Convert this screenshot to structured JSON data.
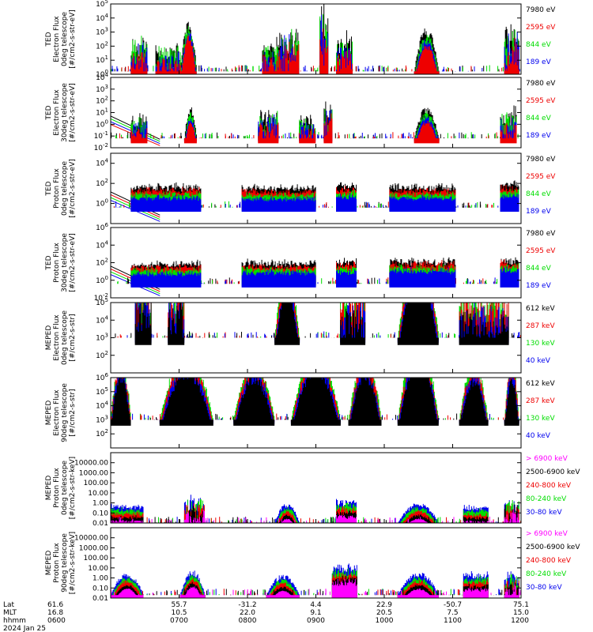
{
  "figure": {
    "xaxis": {
      "row_labels": [
        "Lat",
        "MLT",
        "hhmm"
      ],
      "date": "2024 Jan 25",
      "ticks": [
        {
          "lat": "61.6",
          "mlt": "16.8",
          "hhmm": "0600"
        },
        {
          "lat": "55.7",
          "mlt": "10.5",
          "hhmm": "0700"
        },
        {
          "lat": "-31.2",
          "mlt": "22.0",
          "hhmm": "0800"
        },
        {
          "lat": "4.4",
          "mlt": "9.1",
          "hhmm": "0900"
        },
        {
          "lat": "22.9",
          "mlt": "20.5",
          "hhmm": "1000"
        },
        {
          "lat": "-50.7",
          "mlt": "7.5",
          "hhmm": "1100"
        },
        {
          "lat": "75.1",
          "mlt": "15.0",
          "hhmm": "1200"
        }
      ]
    },
    "colors": {
      "black": "#000000",
      "red": "#ee0000",
      "green": "#00dd00",
      "blue": "#0000ee",
      "magenta": "#ff00ff"
    }
  },
  "chart_data": [
    {
      "type": "line",
      "ylabel_lines": [
        "TED",
        "Electron Flux",
        "0deg telescope",
        "[#/cm2-s-str-eV]"
      ],
      "yscale": "log",
      "ylim": [
        1,
        100000
      ],
      "yticks": [
        {
          "exp": "0"
        },
        {
          "exp": "1"
        },
        {
          "exp": "2"
        },
        {
          "exp": "3"
        },
        {
          "exp": "4"
        },
        {
          "exp": "5"
        }
      ],
      "legend": [
        {
          "label": "7980 eV",
          "color": "#000000"
        },
        {
          "label": "2595 eV",
          "color": "#ee0000"
        },
        {
          "label": "844 eV",
          "color": "#00dd00"
        },
        {
          "label": "189 eV",
          "color": "#0000ee"
        }
      ],
      "series_colors": [
        "#000000",
        "#00dd00",
        "#0000ee",
        "#ee0000"
      ],
      "base": 0.2,
      "seed": 11,
      "features": [
        [
          0.05,
          0.09,
          2.6,
          1
        ],
        [
          0.11,
          0.17,
          2.0,
          1
        ],
        [
          0.17,
          0.21,
          3.3,
          3
        ],
        [
          0.37,
          0.41,
          2.3,
          1
        ],
        [
          0.41,
          0.46,
          3.1,
          1
        ],
        [
          0.51,
          0.53,
          4.5,
          1
        ],
        [
          0.55,
          0.59,
          2.6,
          1
        ],
        [
          0.74,
          0.8,
          2.8,
          3
        ],
        [
          0.96,
          0.995,
          3.4,
          1
        ]
      ]
    },
    {
      "type": "line",
      "ylabel_lines": [
        "TED",
        "Electron Flux",
        "30deg telescope",
        "[#/cm2-s-str-eV]"
      ],
      "yscale": "log",
      "ylim": [
        0.01,
        10000
      ],
      "yticks": [
        {
          "exp": "-2"
        },
        {
          "exp": "-1"
        },
        {
          "exp": "0"
        },
        {
          "exp": "1"
        },
        {
          "exp": "2"
        },
        {
          "exp": "3"
        },
        {
          "exp": "4"
        }
      ],
      "legend": [
        {
          "label": "7980 eV",
          "color": "#000000"
        },
        {
          "label": "2595 eV",
          "color": "#ee0000"
        },
        {
          "label": "844 eV",
          "color": "#00dd00"
        },
        {
          "label": "189 eV",
          "color": "#0000ee"
        }
      ],
      "series_colors": [
        "#000000",
        "#00dd00",
        "#0000ee",
        "#ee0000"
      ],
      "base": 0.8,
      "seed": 23,
      "features": [
        [
          0.0,
          0.12,
          0.3,
          4
        ],
        [
          0.05,
          0.09,
          2.2,
          1
        ],
        [
          0.18,
          0.21,
          2.4,
          3
        ],
        [
          0.36,
          0.41,
          2.6,
          1
        ],
        [
          0.46,
          0.5,
          2.0,
          1
        ],
        [
          0.52,
          0.54,
          3.0,
          1
        ],
        [
          0.74,
          0.8,
          2.4,
          3
        ],
        [
          0.95,
          0.99,
          2.6,
          1
        ]
      ]
    },
    {
      "type": "line",
      "ylabel_lines": [
        "TED",
        "Proton Flux",
        "0deg telescope",
        "[#/cm2-s-str-eV]"
      ],
      "yscale": "log",
      "ylim": [
        0.01,
        100000
      ],
      "yticks": [
        {
          "exp": "0"
        },
        {
          "exp": "2"
        },
        {
          "exp": "4"
        }
      ],
      "legend": [
        {
          "label": "7980 eV",
          "color": "#000000"
        },
        {
          "label": "2595 eV",
          "color": "#ee0000"
        },
        {
          "label": "844 eV",
          "color": "#00dd00"
        },
        {
          "label": "189 eV",
          "color": "#0000ee"
        }
      ],
      "series_colors": [
        "#000000",
        "#ee0000",
        "#00dd00",
        "#0000ee"
      ],
      "base": 1.6,
      "seed": 37,
      "features": [
        [
          0.0,
          0.12,
          0.2,
          5
        ],
        [
          0.05,
          0.22,
          2.0,
          2
        ],
        [
          0.32,
          0.5,
          1.9,
          2
        ],
        [
          0.55,
          0.6,
          2.1,
          2
        ],
        [
          0.68,
          0.84,
          2.0,
          2
        ],
        [
          0.95,
          0.995,
          2.2,
          2
        ]
      ]
    },
    {
      "type": "line",
      "ylabel_lines": [
        "TED",
        "Proton Flux",
        "30deg telescope",
        "[#/cm2-s-str-eV]"
      ],
      "yscale": "log",
      "ylim": [
        0.01,
        1000000
      ],
      "yticks": [
        {
          "exp": "-2"
        },
        {
          "exp": "0"
        },
        {
          "exp": "2"
        },
        {
          "exp": "4"
        },
        {
          "exp": "6"
        }
      ],
      "legend": [
        {
          "label": "7980 eV",
          "color": "#000000"
        },
        {
          "label": "2595 eV",
          "color": "#ee0000"
        },
        {
          "label": "844 eV",
          "color": "#00dd00"
        },
        {
          "label": "189 eV",
          "color": "#0000ee"
        }
      ],
      "series_colors": [
        "#000000",
        "#ee0000",
        "#00dd00",
        "#0000ee"
      ],
      "base": 1.6,
      "seed": 53,
      "features": [
        [
          0.0,
          0.12,
          0.0,
          5
        ],
        [
          0.05,
          0.22,
          2.2,
          2
        ],
        [
          0.32,
          0.5,
          2.3,
          2
        ],
        [
          0.55,
          0.6,
          2.4,
          2
        ],
        [
          0.68,
          0.84,
          2.5,
          2
        ],
        [
          0.95,
          0.995,
          2.6,
          2
        ]
      ]
    },
    {
      "type": "line",
      "ylabel_lines": [
        "MEPED",
        "Electron Flux",
        "0deg telescope",
        "[#/cm2-s-str]"
      ],
      "yscale": "log",
      "ylim": [
        10,
        100000
      ],
      "yticks": [
        {
          "exp": "2"
        },
        {
          "exp": "3"
        },
        {
          "exp": "4"
        },
        {
          "exp": "5"
        }
      ],
      "legend": [
        {
          "label": "612 keV",
          "color": "#000000"
        },
        {
          "label": "287 keV",
          "color": "#ee0000"
        },
        {
          "label": "130 keV",
          "color": "#00dd00"
        },
        {
          "label": "40 keV",
          "color": "#0000ee"
        }
      ],
      "series_colors": [
        "#00dd00",
        "#ee0000",
        "#0000ee",
        "#000000"
      ],
      "base": 2.0,
      "seed": 67,
      "features": [
        [
          0.06,
          0.1,
          3.5,
          1
        ],
        [
          0.14,
          0.18,
          3.2,
          1
        ],
        [
          0.4,
          0.46,
          3.6,
          3
        ],
        [
          0.7,
          0.8,
          4.8,
          3
        ],
        [
          0.56,
          0.62,
          2.8,
          1
        ],
        [
          0.85,
          0.97,
          2.6,
          1
        ]
      ]
    },
    {
      "type": "line",
      "ylabel_lines": [
        "MEPED",
        "Electron Flux",
        "90deg telescope",
        "[#/cm2-s-str]"
      ],
      "yscale": "log",
      "ylim": [
        10,
        1000000
      ],
      "yticks": [
        {
          "exp": "2"
        },
        {
          "exp": "3"
        },
        {
          "exp": "4"
        },
        {
          "exp": "5"
        },
        {
          "exp": "6"
        }
      ],
      "legend": [
        {
          "label": "612 keV",
          "color": "#000000"
        },
        {
          "label": "287 keV",
          "color": "#ee0000"
        },
        {
          "label": "130 keV",
          "color": "#00dd00"
        },
        {
          "label": "40 keV",
          "color": "#0000ee"
        }
      ],
      "series_colors": [
        "#00dd00",
        "#ee0000",
        "#0000ee",
        "#000000"
      ],
      "base": 2.0,
      "seed": 79,
      "features": [
        [
          0.0,
          0.05,
          4.1,
          3
        ],
        [
          0.12,
          0.25,
          4.4,
          3
        ],
        [
          0.3,
          0.4,
          4.0,
          3
        ],
        [
          0.44,
          0.56,
          4.6,
          3
        ],
        [
          0.58,
          0.66,
          4.2,
          3
        ],
        [
          0.7,
          0.8,
          5.3,
          3
        ],
        [
          0.85,
          0.92,
          3.8,
          3
        ],
        [
          0.96,
          0.995,
          4.0,
          3
        ]
      ]
    },
    {
      "type": "line",
      "ylabel_lines": [
        "MEPED",
        "Proton Flux",
        "0deg telescope",
        "[#/cm2-s-str-keV]"
      ],
      "yscale": "log",
      "ylim": [
        0.01,
        100000
      ],
      "yticks": [
        {
          "label": "0.01"
        },
        {
          "label": "0.10"
        },
        {
          "label": "1.00"
        },
        {
          "label": "10.00"
        },
        {
          "label": "100.00"
        },
        {
          "label": "1000.00"
        },
        {
          "label": "10000.00"
        }
      ],
      "legend": [
        {
          "label": "> 6900 keV",
          "color": "#ff00ff"
        },
        {
          "label": "2500-6900 keV",
          "color": "#000000"
        },
        {
          "label": "240-800 keV",
          "color": "#ee0000"
        },
        {
          "label": "80-240 keV",
          "color": "#00dd00"
        },
        {
          "label": "30-80 keV",
          "color": "#0000ee"
        }
      ],
      "series_colors": [
        "#0000ee",
        "#00dd00",
        "#ee0000",
        "#000000",
        "#ff00ff"
      ],
      "base": 0.0,
      "seed": 89,
      "features": [
        [
          0.0,
          0.08,
          1.6,
          2
        ],
        [
          0.18,
          0.23,
          2.6,
          1
        ],
        [
          0.4,
          0.46,
          1.8,
          3
        ],
        [
          0.55,
          0.6,
          2.0,
          2
        ],
        [
          0.7,
          0.8,
          1.8,
          3
        ],
        [
          0.86,
          0.92,
          1.5,
          2
        ],
        [
          0.96,
          0.995,
          2.8,
          1
        ]
      ]
    },
    {
      "type": "line",
      "ylabel_lines": [
        "MEPED",
        "Proton Flux",
        "90deg telescope",
        "[#/cm2-s-str-keV]"
      ],
      "yscale": "log",
      "ylim": [
        0.01,
        100000
      ],
      "yticks": [
        {
          "label": "0.01"
        },
        {
          "label": "0.10"
        },
        {
          "label": "1.00"
        },
        {
          "label": "10.00"
        },
        {
          "label": "100.00"
        },
        {
          "label": "1000.00"
        },
        {
          "label": "10000.00"
        }
      ],
      "legend": [
        {
          "label": "> 6900 keV",
          "color": "#ff00ff"
        },
        {
          "label": "2500-6900 keV",
          "color": "#000000"
        },
        {
          "label": "240-800 keV",
          "color": "#ee0000"
        },
        {
          "label": "80-240 keV",
          "color": "#00dd00"
        },
        {
          "label": "30-80 keV",
          "color": "#0000ee"
        }
      ],
      "series_colors": [
        "#0000ee",
        "#00dd00",
        "#ee0000",
        "#000000",
        "#ff00ff"
      ],
      "base": 0.3,
      "seed": 97,
      "features": [
        [
          0.0,
          0.08,
          2.0,
          3
        ],
        [
          0.17,
          0.23,
          2.2,
          3
        ],
        [
          0.38,
          0.46,
          1.8,
          3
        ],
        [
          0.54,
          0.6,
          2.6,
          2
        ],
        [
          0.7,
          0.8,
          2.0,
          3
        ],
        [
          0.86,
          0.92,
          1.9,
          2
        ],
        [
          0.96,
          0.995,
          2.4,
          1
        ]
      ]
    }
  ]
}
